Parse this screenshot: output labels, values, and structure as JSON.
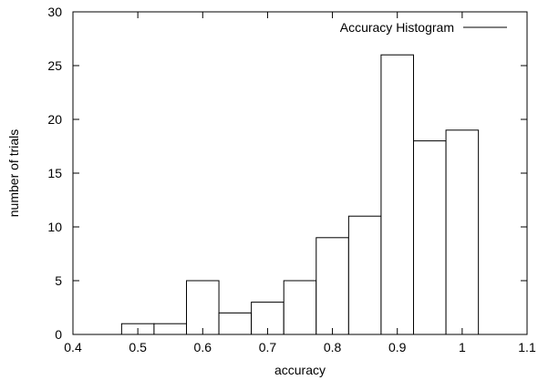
{
  "chart_data": {
    "type": "bar",
    "legend": {
      "label": "Accuracy Histogram",
      "position": "top-right"
    },
    "xlabel": "accuracy",
    "ylabel": "number of trials",
    "xlim": [
      0.4,
      1.1
    ],
    "ylim": [
      0,
      30
    ],
    "x_ticks": [
      "0.4",
      "0.5",
      "0.6",
      "0.7",
      "0.8",
      "0.9",
      "1",
      "1.1"
    ],
    "y_ticks": [
      "0",
      "5",
      "10",
      "15",
      "20",
      "25",
      "30"
    ],
    "bin_width": 0.05,
    "bins": [
      {
        "x": 0.5,
        "value": 1
      },
      {
        "x": 0.55,
        "value": 1
      },
      {
        "x": 0.6,
        "value": 5
      },
      {
        "x": 0.65,
        "value": 2
      },
      {
        "x": 0.7,
        "value": 3
      },
      {
        "x": 0.75,
        "value": 5
      },
      {
        "x": 0.8,
        "value": 9
      },
      {
        "x": 0.85,
        "value": 11
      },
      {
        "x": 0.9,
        "value": 26
      },
      {
        "x": 0.95,
        "value": 18
      },
      {
        "x": 1.0,
        "value": 19
      }
    ],
    "grid": false,
    "colors": {
      "bar_fill": "#ffffff",
      "stroke": "#000000"
    }
  }
}
